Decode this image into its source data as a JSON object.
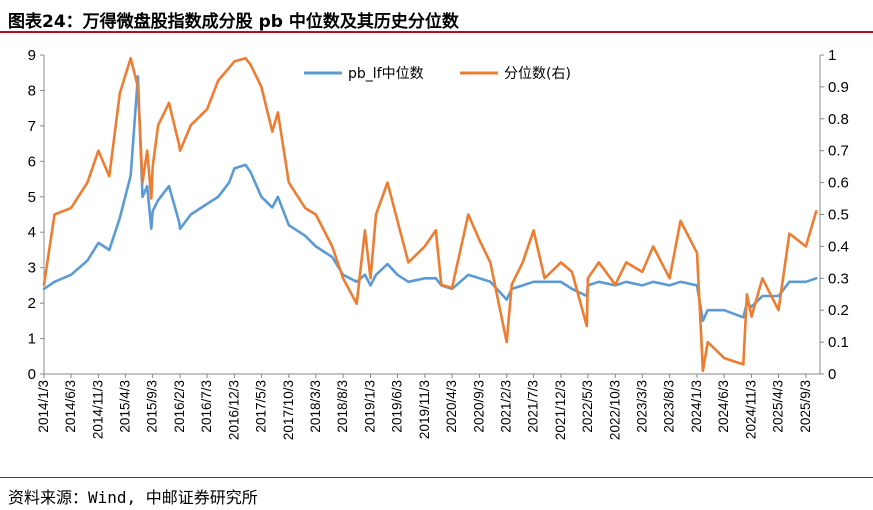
{
  "header": {
    "title": "图表24：万得微盘股指数成分股 pb 中位数及其历史分位数"
  },
  "footer": {
    "source": "资料来源：Wind, 中邮证券研究所"
  },
  "colors": {
    "median_line": "#5b9bd5",
    "percentile_line": "#ed7d31",
    "accent_rule": "#b5121b"
  },
  "chart_data": {
    "type": "line",
    "title": "万得微盘股指数成分股 pb 中位数及其历史分位数",
    "legend_placement": "top-center",
    "grid": false,
    "x_tick_labels": [
      "2014/1/3",
      "2014/6/3",
      "2014/11/3",
      "2015/4/3",
      "2015/9/3",
      "2016/2/3",
      "2016/7/3",
      "2016/12/3",
      "2017/5/3",
      "2017/10/3",
      "2018/3/3",
      "2018/8/3",
      "2019/1/3",
      "2019/6/3",
      "2019/11/3",
      "2020/4/3",
      "2020/9/3",
      "2021/2/3",
      "2021/7/3",
      "2021/12/3",
      "2022/5/3",
      "2022/10/3",
      "2023/3/3",
      "2023/8/3",
      "2024/1/3",
      "2024/6/3",
      "2024/11/3",
      "2025/4/3",
      "2025/9/3"
    ],
    "y_left": {
      "ylim": [
        0,
        9
      ],
      "ticks": [
        "0",
        "1",
        "2",
        "3",
        "4",
        "5",
        "6",
        "7",
        "8",
        "9"
      ]
    },
    "y_right": {
      "ylim": [
        0,
        1
      ],
      "ticks": [
        "0",
        "0.1",
        "0.2",
        "0.3",
        "0.4",
        "0.5",
        "0.6",
        "0.7",
        "0.8",
        "0.9",
        "1"
      ]
    },
    "x": [
      "2014/1/3",
      "2014/3/3",
      "2014/6/3",
      "2014/9/3",
      "2014/11/3",
      "2015/1/3",
      "2015/3/3",
      "2015/5/3",
      "2015/6/12",
      "2015/7/8",
      "2015/8/3",
      "2015/8/26",
      "2015/9/3",
      "2015/10/3",
      "2015/12/3",
      "2016/1/28",
      "2016/2/3",
      "2016/4/3",
      "2016/7/3",
      "2016/9/3",
      "2016/11/3",
      "2016/12/3",
      "2017/2/3",
      "2017/3/3",
      "2017/5/3",
      "2017/7/3",
      "2017/8/3",
      "2017/10/3",
      "2018/1/3",
      "2018/3/3",
      "2018/6/3",
      "2018/8/3",
      "2018/10/18",
      "2018/12/3",
      "2019/1/3",
      "2019/2/3",
      "2019/4/8",
      "2019/6/3",
      "2019/8/3",
      "2019/11/3",
      "2020/1/3",
      "2020/2/3",
      "2020/4/3",
      "2020/7/3",
      "2020/9/3",
      "2020/11/3",
      "2021/2/3",
      "2021/3/3",
      "2021/5/3",
      "2021/7/3",
      "2021/9/3",
      "2021/12/3",
      "2022/2/3",
      "2022/4/27",
      "2022/5/3",
      "2022/7/3",
      "2022/10/3",
      "2022/12/3",
      "2023/3/3",
      "2023/5/3",
      "2023/8/3",
      "2023/10/3",
      "2024/1/3",
      "2024/2/5",
      "2024/3/3",
      "2024/6/3",
      "2024/9/18",
      "2024/10/8",
      "2024/11/3",
      "2025/1/3",
      "2025/4/3",
      "2025/6/3",
      "2025/9/3",
      "2025/10/31"
    ],
    "series": [
      {
        "name": "pb_lf中位数",
        "axis": "left",
        "values": [
          2.4,
          2.6,
          2.8,
          3.2,
          3.7,
          3.5,
          4.4,
          5.6,
          8.4,
          5.0,
          5.3,
          4.1,
          4.6,
          4.9,
          5.3,
          4.3,
          4.1,
          4.5,
          4.8,
          5.0,
          5.4,
          5.8,
          5.9,
          5.7,
          5.0,
          4.7,
          5.0,
          4.2,
          3.9,
          3.6,
          3.3,
          2.8,
          2.6,
          2.8,
          2.5,
          2.8,
          3.1,
          2.8,
          2.6,
          2.7,
          2.7,
          2.5,
          2.4,
          2.8,
          2.7,
          2.6,
          2.1,
          2.4,
          2.5,
          2.6,
          2.6,
          2.6,
          2.4,
          2.2,
          2.5,
          2.6,
          2.5,
          2.6,
          2.5,
          2.6,
          2.5,
          2.6,
          2.5,
          1.5,
          1.8,
          1.8,
          1.6,
          2.0,
          1.9,
          2.2,
          2.2,
          2.6,
          2.6,
          2.7
        ]
      },
      {
        "name": "分位数(右)",
        "axis": "right",
        "values": [
          0.28,
          0.5,
          0.52,
          0.6,
          0.7,
          0.62,
          0.88,
          0.99,
          0.9,
          0.6,
          0.7,
          0.55,
          0.65,
          0.78,
          0.85,
          0.72,
          0.7,
          0.78,
          0.83,
          0.92,
          0.96,
          0.98,
          0.99,
          0.97,
          0.9,
          0.76,
          0.82,
          0.6,
          0.52,
          0.5,
          0.4,
          0.3,
          0.22,
          0.45,
          0.3,
          0.5,
          0.6,
          0.48,
          0.35,
          0.4,
          0.45,
          0.28,
          0.27,
          0.5,
          0.42,
          0.35,
          0.1,
          0.28,
          0.35,
          0.45,
          0.3,
          0.35,
          0.32,
          0.15,
          0.3,
          0.35,
          0.28,
          0.35,
          0.32,
          0.4,
          0.3,
          0.48,
          0.38,
          0.01,
          0.1,
          0.05,
          0.03,
          0.25,
          0.18,
          0.3,
          0.2,
          0.44,
          0.4,
          0.51
        ]
      }
    ]
  }
}
